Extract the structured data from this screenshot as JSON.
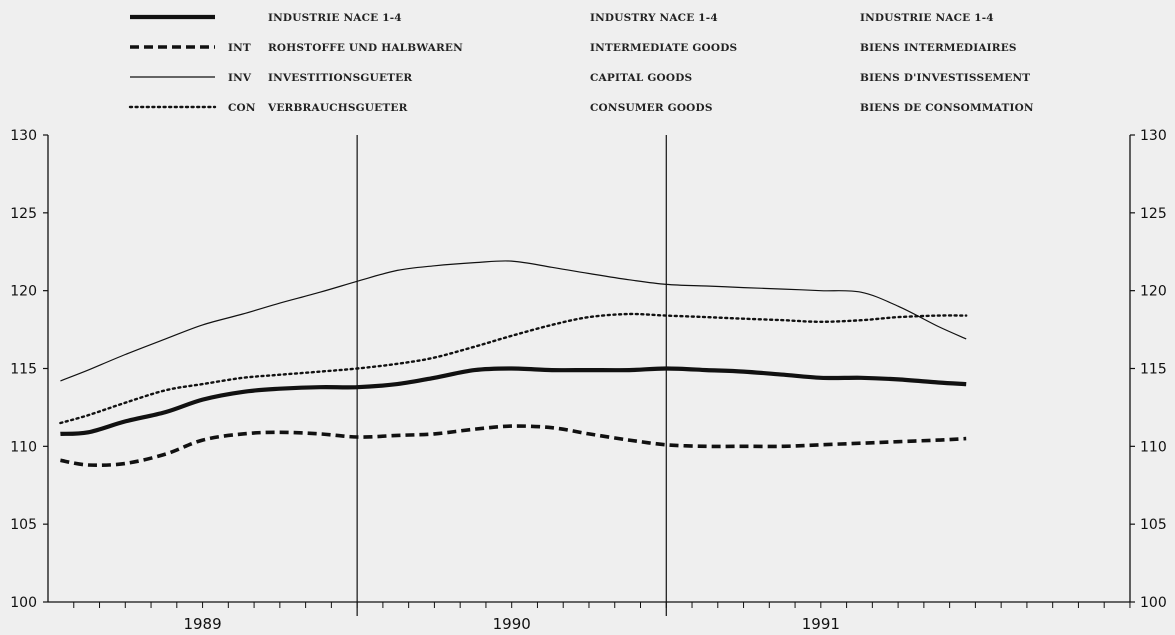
{
  "chart_data": {
    "type": "line",
    "title": "",
    "xlabel": "",
    "ylabel": "",
    "ylim": [
      100,
      130
    ],
    "yticks": [
      100,
      105,
      110,
      115,
      120,
      125,
      130
    ],
    "xlim": [
      1988.5,
      1992.0
    ],
    "x_major_ticks": [
      1989.5,
      1990.5
    ],
    "x_year_labels": [
      {
        "label": "1989",
        "x": 1989.0
      },
      {
        "label": "1990",
        "x": 1990.0
      },
      {
        "label": "1991",
        "x": 1991.0
      }
    ],
    "minor_tick_step": 0.08333,
    "grid": false,
    "legend_position": "top",
    "legend": [
      {
        "key": "ind",
        "code": "",
        "de": "INDUSTRIE NACE 1-4",
        "en": "INDUSTRY NACE 1-4",
        "fr": "INDUSTRIE NACE 1-4",
        "color": "#111111",
        "style": "solid-thick"
      },
      {
        "key": "int",
        "code": "INT",
        "de": "ROHSTOFFE UND HALBWAREN",
        "en": "INTERMEDIATE GOODS",
        "fr": "BIENS INTERMEDIAIRES",
        "color": "#111111",
        "style": "dashed-thick"
      },
      {
        "key": "inv",
        "code": "INV",
        "de": "INVESTITIONSGUETER",
        "en": "CAPITAL GOODS",
        "fr": "BIENS D'INVESTISSEMENT",
        "color": "#111111",
        "style": "solid-thin"
      },
      {
        "key": "con",
        "code": "CON",
        "de": "VERBRAUCHSGUETER",
        "en": "CONSUMER GOODS",
        "fr": "BIENS DE CONSOMMATION",
        "color": "#111111",
        "style": "dotted"
      }
    ],
    "series": [
      {
        "key": "ind",
        "x": [
          1988.54,
          1988.63,
          1988.75,
          1988.88,
          1989.0,
          1989.13,
          1989.25,
          1989.38,
          1989.5,
          1989.63,
          1989.75,
          1989.88,
          1990.0,
          1990.13,
          1990.25,
          1990.38,
          1990.5,
          1990.63,
          1990.75,
          1990.88,
          1991.0,
          1991.13,
          1991.25,
          1991.38,
          1991.47
        ],
        "values": [
          110.8,
          110.9,
          111.6,
          112.2,
          113.0,
          113.5,
          113.7,
          113.8,
          113.8,
          114.0,
          114.4,
          114.9,
          115.0,
          114.9,
          114.9,
          114.9,
          115.0,
          114.9,
          114.8,
          114.6,
          114.4,
          114.4,
          114.3,
          114.1,
          114.0
        ]
      },
      {
        "key": "int",
        "x": [
          1988.54,
          1988.63,
          1988.75,
          1988.88,
          1989.0,
          1989.13,
          1989.25,
          1989.38,
          1989.5,
          1989.63,
          1989.75,
          1989.88,
          1990.0,
          1990.13,
          1990.25,
          1990.38,
          1990.5,
          1990.63,
          1990.75,
          1990.88,
          1991.0,
          1991.13,
          1991.25,
          1991.38,
          1991.47
        ],
        "values": [
          109.1,
          108.8,
          108.9,
          109.5,
          110.4,
          110.8,
          110.9,
          110.8,
          110.6,
          110.7,
          110.8,
          111.1,
          111.3,
          111.2,
          110.8,
          110.4,
          110.1,
          110.0,
          110.0,
          110.0,
          110.1,
          110.2,
          110.3,
          110.4,
          110.5
        ]
      },
      {
        "key": "inv",
        "x": [
          1988.54,
          1988.63,
          1988.75,
          1988.88,
          1989.0,
          1989.13,
          1989.25,
          1989.38,
          1989.5,
          1989.63,
          1989.75,
          1989.88,
          1990.0,
          1990.13,
          1990.25,
          1990.38,
          1990.5,
          1990.63,
          1990.75,
          1990.88,
          1991.0,
          1991.13,
          1991.25,
          1991.38,
          1991.47
        ],
        "values": [
          114.2,
          114.9,
          115.9,
          116.9,
          117.8,
          118.5,
          119.2,
          119.9,
          120.6,
          121.3,
          121.6,
          121.8,
          121.9,
          121.5,
          121.1,
          120.7,
          120.4,
          120.3,
          120.2,
          120.1,
          120.0,
          119.9,
          119.0,
          117.7,
          116.9
        ]
      },
      {
        "key": "con",
        "x": [
          1988.54,
          1988.63,
          1988.75,
          1988.88,
          1989.0,
          1989.13,
          1989.25,
          1989.38,
          1989.5,
          1989.63,
          1989.75,
          1989.88,
          1990.0,
          1990.13,
          1990.25,
          1990.38,
          1990.5,
          1990.63,
          1990.75,
          1990.88,
          1991.0,
          1991.13,
          1991.25,
          1991.38,
          1991.47
        ],
        "values": [
          111.5,
          112.0,
          112.8,
          113.6,
          114.0,
          114.4,
          114.6,
          114.8,
          115.0,
          115.3,
          115.7,
          116.4,
          117.1,
          117.8,
          118.3,
          118.5,
          118.4,
          118.3,
          118.2,
          118.1,
          118.0,
          118.1,
          118.3,
          118.4,
          118.4
        ]
      }
    ]
  }
}
